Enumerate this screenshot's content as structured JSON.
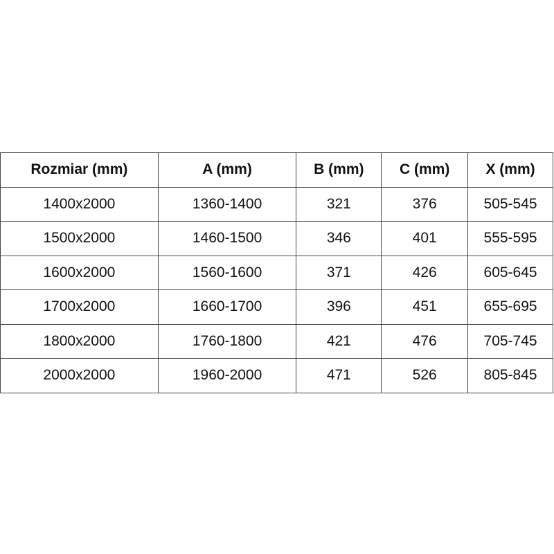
{
  "table": {
    "headers": [
      "Rozmiar (mm)",
      "A (mm)",
      "B (mm)",
      "C (mm)",
      "X (mm)"
    ],
    "rows": [
      [
        "1400x2000",
        "1360-1400",
        "321",
        "376",
        "505-545"
      ],
      [
        "1500x2000",
        "1460-1500",
        "346",
        "401",
        "555-595"
      ],
      [
        "1600x2000",
        "1560-1600",
        "371",
        "426",
        "605-645"
      ],
      [
        "1700x2000",
        "1660-1700",
        "396",
        "451",
        "655-695"
      ],
      [
        "1800x2000",
        "1760-1800",
        "421",
        "476",
        "705-745"
      ],
      [
        "2000x2000",
        "1960-2000",
        "471",
        "526",
        "805-845"
      ]
    ]
  }
}
